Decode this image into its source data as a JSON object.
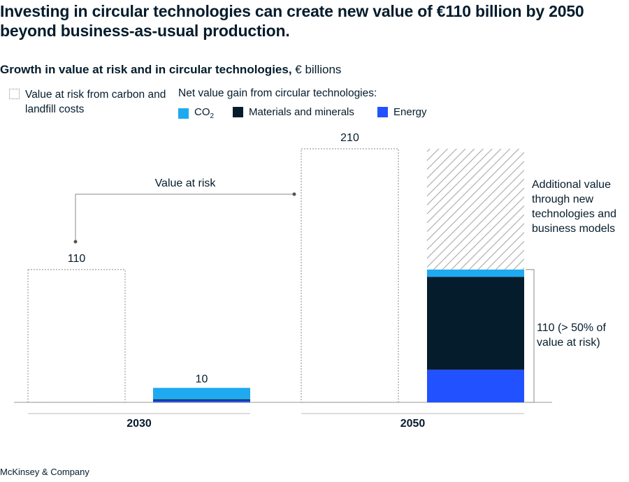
{
  "title": "Investing in circular technologies can create new value of €110 billion by 2050 beyond business-as-usual production.",
  "subtitle_bold": "Growth in value at risk and in circular technologies,",
  "subtitle_unit": " € billions",
  "legend": {
    "risk_label": "Value at risk from carbon and landfill costs",
    "net_label": "Net value gain from circular technologies:",
    "items": [
      {
        "label": "CO",
        "sub": "2",
        "color": "#1fa9f0"
      },
      {
        "label": "Materials and minerals",
        "sub": "",
        "color": "#051c2c"
      },
      {
        "label": "Energy",
        "sub": "",
        "color": "#2251ff"
      }
    ]
  },
  "annotations": {
    "value_at_risk": "Value at risk",
    "additional": [
      "Additional value",
      "through new",
      "technologies and",
      "business models"
    ],
    "bracket": [
      "110 (> 50% of",
      "value at risk)"
    ]
  },
  "chart_data": {
    "type": "bar",
    "categories": [
      "2030",
      "2050"
    ],
    "value_at_risk": [
      110,
      210
    ],
    "value_at_risk_labels": [
      "110",
      "210"
    ],
    "net_total_labels": [
      "10",
      ""
    ],
    "series": [
      {
        "name": "Energy",
        "values": [
          1.5,
          27
        ],
        "color": "#2251ff"
      },
      {
        "name": "Materials and minerals",
        "values": [
          1,
          77
        ],
        "color": "#051c2c"
      },
      {
        "name": "CO2",
        "values": [
          9.5,
          6
        ],
        "color": "#1fa9f0"
      }
    ],
    "additional_value": [
      0,
      100
    ],
    "ylim": [
      0,
      210
    ]
  },
  "footer": "McKinsey & Company"
}
